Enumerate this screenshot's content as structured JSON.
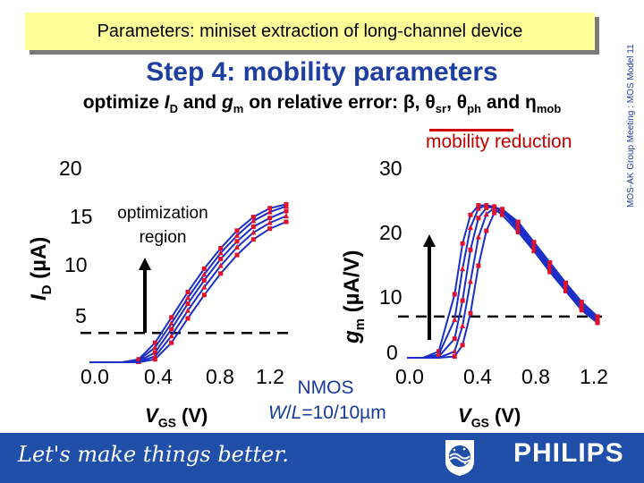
{
  "header": {
    "title": "Parameters: miniset extraction of long-channel device"
  },
  "step_title": "Step 4: mobility parameters",
  "subtitle": {
    "prefix": "optimize ",
    "id": "I",
    "id_sub": "D",
    "mid": " and ",
    "gm": "g",
    "gm_sub": "m",
    "rest": " on relative error: β, θ",
    "sr_sub": "sr",
    "comma": ", θ",
    "ph_sub": "ph",
    "and": " and η",
    "mob_sub": "mob"
  },
  "annotation": {
    "mobility_reduction": "mobility reduction",
    "optimization_region": [
      "optimization",
      "region"
    ]
  },
  "device": {
    "type": "NMOS",
    "wl_prefix": "W",
    "wl_mid": "/",
    "wl_l": "L",
    "wl_value": "=10/10µm"
  },
  "side_note": "MOS-AK Group Meeting : MOS Model 11",
  "footer": {
    "slogan": "Let's make things better.",
    "brand": "PHILIPS"
  },
  "colors": {
    "accent_blue": "#1f3fa0",
    "curve_blue": "#1a2fc8",
    "marker_red": "#e0102a",
    "title_bg": "#ffff99",
    "footer_blue": "#1f4fa8"
  },
  "chart_data": [
    {
      "type": "line",
      "xlabel_main": "V",
      "xlabel_sub": "GS",
      "xlabel_unit": "(V)",
      "ylabel_main": "I",
      "ylabel_sub": "D",
      "ylabel_unit": "(µA)",
      "xlim": [
        0.0,
        1.2
      ],
      "ylim": [
        0,
        20
      ],
      "xticks": [
        "0.0",
        "0.4",
        "0.8",
        "1.2"
      ],
      "yticks": [
        "5",
        "10",
        "15",
        "20"
      ],
      "dashed_threshold": 3,
      "series_x": [
        0.0,
        0.1,
        0.2,
        0.3,
        0.4,
        0.5,
        0.6,
        0.7,
        0.8,
        0.9,
        1.0,
        1.1,
        1.2
      ],
      "series": [
        {
          "values": [
            0,
            0,
            0,
            0.3,
            2.0,
            4.6,
            7.2,
            9.6,
            11.7,
            13.5,
            14.9,
            15.8,
            16.2
          ]
        },
        {
          "values": [
            0,
            0,
            0,
            0.2,
            1.5,
            4.0,
            6.6,
            9.0,
            11.2,
            13.0,
            14.5,
            15.4,
            16.0
          ]
        },
        {
          "values": [
            0,
            0,
            0,
            0.1,
            1.0,
            3.4,
            6.0,
            8.4,
            10.6,
            12.4,
            13.9,
            14.8,
            15.5
          ]
        },
        {
          "values": [
            0,
            0,
            0,
            0.05,
            0.6,
            2.7,
            5.3,
            7.7,
            9.9,
            11.8,
            13.3,
            14.3,
            15.0
          ]
        },
        {
          "values": [
            0,
            0,
            0,
            0,
            0.3,
            2.0,
            4.5,
            6.9,
            9.1,
            11.0,
            12.6,
            13.7,
            14.4
          ]
        }
      ]
    },
    {
      "type": "line",
      "xlabel_main": "V",
      "xlabel_sub": "GS",
      "xlabel_unit": "(V)",
      "ylabel_main": "g",
      "ylabel_sub": "m",
      "ylabel_unit": "(µA/V)",
      "xlim": [
        0.0,
        1.2
      ],
      "ylim": [
        0,
        30
      ],
      "xticks": [
        "0.0",
        "0.4",
        "0.8",
        "1.2"
      ],
      "yticks": [
        "0",
        "10",
        "20",
        "30"
      ],
      "dashed_threshold": 6.5,
      "series_x": [
        0.0,
        0.1,
        0.2,
        0.3,
        0.35,
        0.4,
        0.45,
        0.5,
        0.55,
        0.6,
        0.7,
        0.8,
        0.9,
        1.0,
        1.1,
        1.2
      ],
      "series": [
        {
          "values": [
            0,
            0,
            1,
            10,
            18,
            22.5,
            24,
            24,
            23.5,
            22.5,
            19.8,
            16.8,
            13.5,
            10.5,
            7.5,
            5.5
          ]
        },
        {
          "values": [
            0,
            0,
            0.5,
            6,
            14,
            20.5,
            23.5,
            24,
            23.8,
            23,
            20.2,
            17,
            13.8,
            10.8,
            7.8,
            5.8
          ]
        },
        {
          "values": [
            0,
            0,
            0.2,
            3,
            9,
            17,
            22,
            23.6,
            23.8,
            23.2,
            20.6,
            17.4,
            14.2,
            11,
            8,
            6
          ]
        },
        {
          "values": [
            0,
            0,
            0,
            1,
            5,
            12,
            19,
            22.6,
            23.6,
            23.4,
            21,
            17.8,
            14.6,
            11.4,
            8.4,
            6.2
          ]
        },
        {
          "values": [
            0,
            0,
            0,
            0.2,
            2,
            7,
            14.5,
            20,
            22.8,
            23.4,
            21.4,
            18.2,
            15,
            11.8,
            8.8,
            6.5
          ]
        }
      ]
    }
  ]
}
